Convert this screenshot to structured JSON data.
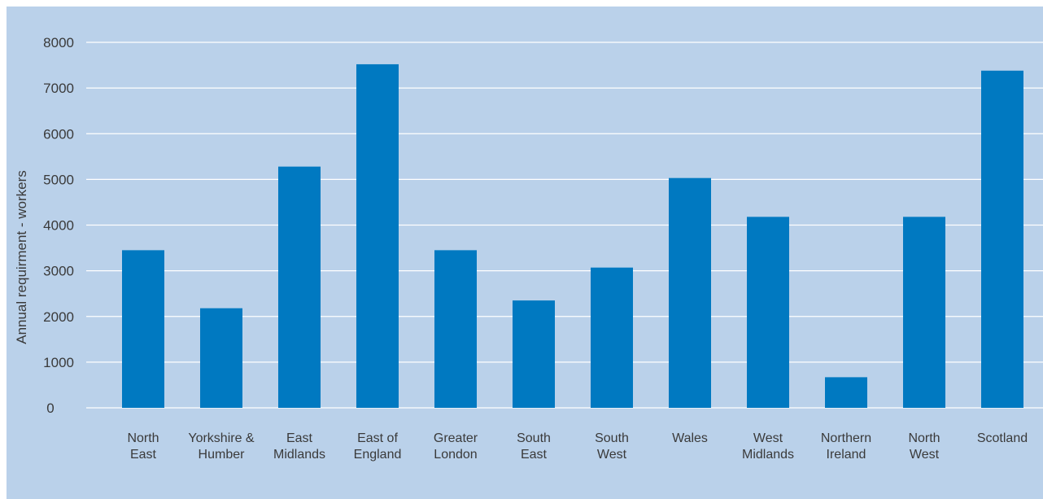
{
  "chart_data": {
    "type": "bar",
    "title": "",
    "xlabel": "",
    "ylabel": "Annual requirment - workers",
    "ylim": [
      0,
      8000
    ],
    "yticks": [
      0,
      1000,
      2000,
      3000,
      4000,
      5000,
      6000,
      7000,
      8000
    ],
    "grid": true,
    "colors": {
      "bar": "#0079c1",
      "background": "#bad1ea",
      "grid": "#ffffff"
    },
    "categories": [
      [
        "North",
        "East"
      ],
      [
        "Yorkshire &",
        "Humber"
      ],
      [
        "East",
        "Midlands"
      ],
      [
        "East of",
        "England"
      ],
      [
        "Greater",
        "London"
      ],
      [
        "South",
        "East"
      ],
      [
        "South",
        "West"
      ],
      [
        "Wales"
      ],
      [
        "West",
        "Midlands"
      ],
      [
        "Northern",
        "Ireland"
      ],
      [
        "North",
        "West"
      ],
      [
        "Scotland"
      ]
    ],
    "values": [
      3450,
      2180,
      5280,
      7520,
      3450,
      2350,
      3070,
      5030,
      4180,
      670,
      4180,
      7380
    ]
  }
}
